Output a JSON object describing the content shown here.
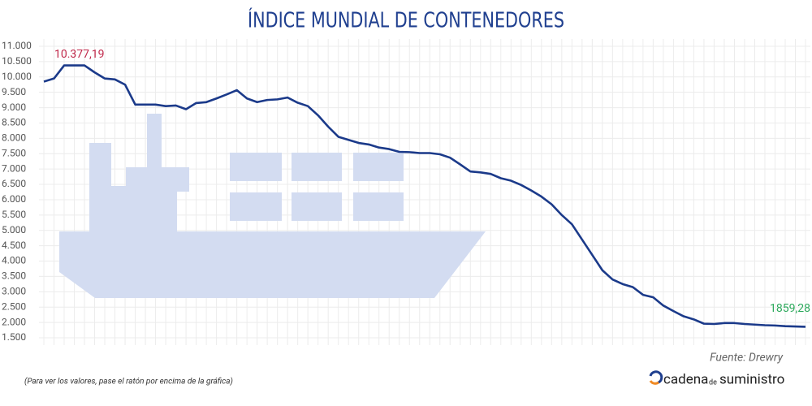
{
  "chart_data": {
    "type": "line",
    "title": "ÍNDICE MUNDIAL DE CONTENEDORES",
    "footnote": "(Para ver los valores, pase el ratón por encima de la gráfica)",
    "source": "Fuente: Drewry",
    "brand": [
      "cadena",
      "de",
      "suministro"
    ],
    "color": "#1b3a8a",
    "grid": true,
    "ylim": [
      1500,
      11000
    ],
    "yticks": [
      {
        "value": 1500,
        "label": "1.500"
      },
      {
        "value": 2000,
        "label": "2.000"
      },
      {
        "value": 2500,
        "label": "2.500"
      },
      {
        "value": 3000,
        "label": "3.000"
      },
      {
        "value": 3500,
        "label": "3.500"
      },
      {
        "value": 4000,
        "label": "4.000"
      },
      {
        "value": 4500,
        "label": "4.500"
      },
      {
        "value": 5000,
        "label": "5.000"
      },
      {
        "value": 5500,
        "label": "5.500"
      },
      {
        "value": 6000,
        "label": "6.000"
      },
      {
        "value": 6500,
        "label": "6.500"
      },
      {
        "value": 7000,
        "label": "7.000"
      },
      {
        "value": 7500,
        "label": "7.500"
      },
      {
        "value": 8000,
        "label": "8.000"
      },
      {
        "value": 8500,
        "label": "8.500"
      },
      {
        "value": 9000,
        "label": "9.000"
      },
      {
        "value": 9500,
        "label": "9.500"
      },
      {
        "value": 10000,
        "label": "10.000"
      },
      {
        "value": 10500,
        "label": "10.500"
      },
      {
        "value": 11000,
        "label": "11.000"
      }
    ],
    "categories": [
      null,
      null,
      null,
      null,
      null,
      null,
      null,
      null,
      null,
      null,
      null,
      null,
      null,
      null,
      null,
      null,
      null,
      null,
      null,
      null,
      null,
      null,
      null,
      null,
      null,
      null,
      null,
      null,
      null,
      null,
      null,
      null,
      null,
      null,
      null,
      null,
      null,
      null,
      null,
      null,
      null,
      null,
      null,
      null,
      null,
      null,
      null,
      null,
      null,
      null,
      null,
      null,
      null,
      null,
      null,
      null,
      null,
      null,
      null,
      null,
      null,
      null,
      null,
      null,
      null,
      null,
      null,
      null,
      null,
      null,
      null,
      null,
      null,
      null,
      null,
      null
    ],
    "values": [
      9850,
      9950,
      10377.19,
      10377,
      10377,
      10150,
      9950,
      9920,
      9750,
      9100,
      9100,
      9100,
      9050,
      9070,
      8950,
      9150,
      9180,
      9300,
      9430,
      9570,
      9300,
      9180,
      9250,
      9270,
      9330,
      9160,
      9050,
      8750,
      8380,
      8050,
      7950,
      7850,
      7800,
      7700,
      7650,
      7560,
      7550,
      7520,
      7520,
      7480,
      7370,
      7150,
      6920,
      6890,
      6840,
      6700,
      6620,
      6480,
      6300,
      6100,
      5850,
      5500,
      5200,
      4700,
      4200,
      3700,
      3400,
      3250,
      3150,
      2900,
      2820,
      2550,
      2370,
      2200,
      2100,
      1960,
      1950,
      1980,
      1980,
      1950,
      1930,
      1910,
      1900,
      1880,
      1870,
      1859.28
    ],
    "value_labels": [
      null,
      null,
      "10.377,19",
      null,
      null,
      null,
      null,
      null,
      null,
      null,
      null,
      null,
      null,
      null,
      null,
      null,
      null,
      null,
      null,
      null,
      null,
      null,
      null,
      null,
      null,
      null,
      null,
      null,
      null,
      null,
      null,
      null,
      null,
      null,
      null,
      null,
      null,
      null,
      null,
      null,
      null,
      null,
      null,
      null,
      null,
      null,
      null,
      null,
      null,
      null,
      null,
      null,
      null,
      null,
      null,
      null,
      null,
      null,
      null,
      null,
      null,
      null,
      null,
      null,
      null,
      null,
      null,
      null,
      null,
      null,
      null,
      null,
      null,
      null,
      null,
      "1859,28"
    ]
  }
}
